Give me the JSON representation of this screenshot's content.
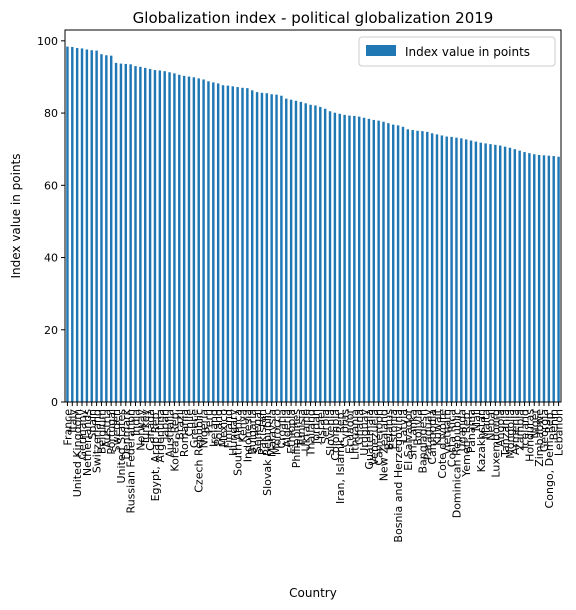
{
  "chart_data": {
    "type": "bar",
    "title": "Globalization index - political globalization 2019",
    "xlabel": "Country",
    "ylabel": "Index value in points",
    "ylim": [
      0,
      103
    ],
    "yticks": [
      0,
      20,
      40,
      60,
      80,
      100
    ],
    "grid": false,
    "legend": {
      "placement": "top-right",
      "entries": [
        "Index value in points"
      ]
    },
    "bar_color": "#1f77b4",
    "categories": [
      "France",
      "Italy",
      "United Kingdom",
      "Germany",
      "Netherlands",
      "Spain",
      "Switzerland",
      "Belgium",
      "Austria",
      "Portugal",
      "Sweden",
      "United States",
      "Denmark",
      "Russian Federation",
      "India",
      "Norway",
      "Turkey",
      "Canada",
      "Egypt, Arab Rep.",
      "Argentina",
      "Japan",
      "Australia",
      "Korea, Rep.",
      "Brazil",
      "Romania",
      "Chile",
      "Greece",
      "Czech Republic",
      "Nigeria",
      "Peru",
      "Ireland",
      "Poland",
      "Mexico",
      "Finland",
      "Hungary",
      "South Africa",
      "Kenya",
      "Indonesia",
      "Bulgaria",
      "Senegal",
      "Pakistan",
      "Slovak Republic",
      "Malaysia",
      "Morocco",
      "Croatia",
      "Algeria",
      "Ethiopia",
      "Philippines",
      "Tunisia",
      "Ukraine",
      "Thailand",
      "Jordan",
      "Israel",
      "Serbia",
      "Slovenia",
      "Colombia",
      "Iran, Islamic Rep.",
      "Cyprus",
      "Ecuador",
      "Lithuania",
      "Ghana",
      "Uruguay",
      "Guatemala",
      "Venezuela",
      "Cameroon",
      "New Zealand",
      "Belarus",
      "Estonia",
      "Bosnia and Herzegovina",
      "Latvia",
      "El Salvador",
      "Sri Lanka",
      "Bolivia",
      "Bangladesh",
      "Paraguay",
      "Cambodia",
      "Kuwait",
      "Cote d'Ivoire",
      "Vietnam",
      "Costa Rica",
      "Dominican Republic",
      "Uganda",
      "Yemen, Rep.",
      "Panama",
      "Mali",
      "Kazakhstan",
      "Malta",
      "Nepal",
      "Luxembourg",
      "Angola",
      "Tanzania",
      "Mongolia",
      "Armenia",
      "Zambia",
      "Iceland",
      "Honduras",
      "Niger",
      "Zimbabwe",
      "Georgia",
      "Congo, Dem. Rep.",
      "Benin",
      "Lebanon"
    ],
    "values": [
      98.4,
      98.3,
      98.0,
      97.9,
      97.6,
      97.4,
      97.3,
      96.3,
      96.0,
      95.9,
      93.9,
      93.7,
      93.6,
      93.5,
      93.0,
      92.8,
      92.5,
      92.2,
      91.9,
      91.8,
      91.6,
      91.3,
      91.0,
      90.6,
      90.3,
      90.1,
      89.9,
      89.6,
      89.3,
      88.8,
      88.5,
      88.2,
      87.7,
      87.6,
      87.4,
      87.2,
      87.0,
      86.9,
      86.3,
      85.8,
      85.6,
      85.5,
      85.2,
      85.1,
      84.8,
      84.0,
      83.7,
      83.4,
      83.1,
      82.7,
      82.3,
      82.1,
      81.7,
      81.2,
      80.5,
      80.1,
      79.8,
      79.5,
      79.3,
      79.2,
      79.0,
      78.7,
      78.4,
      78.1,
      77.9,
      77.6,
      77.2,
      76.8,
      76.6,
      76.2,
      75.5,
      75.3,
      75.1,
      75.0,
      74.8,
      74.4,
      74.1,
      73.8,
      73.5,
      73.4,
      73.2,
      73.0,
      72.7,
      72.4,
      72.1,
      71.8,
      71.6,
      71.4,
      71.2,
      71.0,
      70.7,
      70.4,
      70.0,
      69.6,
      69.2,
      68.9,
      68.6,
      68.4,
      68.3,
      68.2,
      68.1,
      67.9
    ]
  }
}
